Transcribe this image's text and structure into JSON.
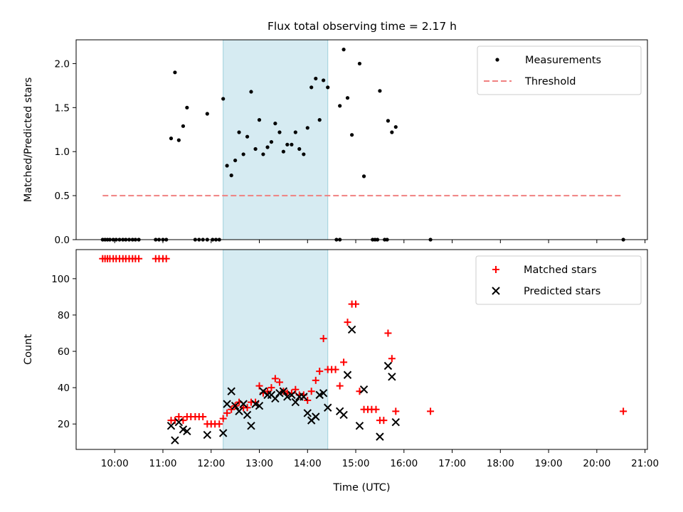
{
  "figure_title": "Flux total observing time = 2.17 h",
  "chart_data": [
    {
      "type": "scatter",
      "name": "ratio-panel",
      "title": "Flux total observing time = 2.17 h",
      "xlabel": "",
      "ylabel": "Matched/Predicted stars",
      "x_unit": "hours UTC",
      "xlim": [
        9.2,
        21.05
      ],
      "ylim": [
        0.0,
        2.27
      ],
      "yticks": [
        0.0,
        0.5,
        1.0,
        1.5,
        2.0
      ],
      "ytick_labels": [
        "0.0",
        "0.5",
        "1.0",
        "1.5",
        "2.0"
      ],
      "shaded_interval": [
        12.25,
        14.42
      ],
      "legend_position": "upper right",
      "series": [
        {
          "name": "Measurements",
          "color": "#000000",
          "marker": "dot",
          "points": [
            [
              9.75,
              0
            ],
            [
              9.8,
              0
            ],
            [
              9.85,
              0
            ],
            [
              9.9,
              0
            ],
            [
              9.97,
              0
            ],
            [
              10.03,
              0
            ],
            [
              10.1,
              0
            ],
            [
              10.17,
              0
            ],
            [
              10.23,
              0
            ],
            [
              10.3,
              0
            ],
            [
              10.37,
              0
            ],
            [
              10.43,
              0
            ],
            [
              10.5,
              0
            ],
            [
              10.85,
              0
            ],
            [
              10.92,
              0
            ],
            [
              11.0,
              0
            ],
            [
              11.07,
              0
            ],
            [
              11.67,
              0
            ],
            [
              11.75,
              0
            ],
            [
              11.83,
              0
            ],
            [
              11.92,
              0
            ],
            [
              12.03,
              0
            ],
            [
              12.1,
              0
            ],
            [
              12.17,
              0
            ],
            [
              14.6,
              0
            ],
            [
              14.67,
              0
            ],
            [
              15.35,
              0
            ],
            [
              15.4,
              0
            ],
            [
              15.45,
              0
            ],
            [
              15.6,
              0
            ],
            [
              15.65,
              0
            ],
            [
              16.55,
              0
            ],
            [
              20.55,
              0
            ],
            [
              11.17,
              1.15
            ],
            [
              11.25,
              1.9
            ],
            [
              11.33,
              1.13
            ],
            [
              11.42,
              1.29
            ],
            [
              11.5,
              1.5
            ],
            [
              11.92,
              1.43
            ],
            [
              12.25,
              1.6
            ],
            [
              12.33,
              0.84
            ],
            [
              12.42,
              0.73
            ],
            [
              12.5,
              0.9
            ],
            [
              12.58,
              1.22
            ],
            [
              12.67,
              0.97
            ],
            [
              12.75,
              1.17
            ],
            [
              12.83,
              1.68
            ],
            [
              12.92,
              1.03
            ],
            [
              13.0,
              1.36
            ],
            [
              13.08,
              0.97
            ],
            [
              13.17,
              1.05
            ],
            [
              13.25,
              1.11
            ],
            [
              13.33,
              1.32
            ],
            [
              13.42,
              1.22
            ],
            [
              13.5,
              1.0
            ],
            [
              13.58,
              1.08
            ],
            [
              13.67,
              1.08
            ],
            [
              13.75,
              1.22
            ],
            [
              13.83,
              1.03
            ],
            [
              13.92,
              0.97
            ],
            [
              14.0,
              1.27
            ],
            [
              14.08,
              1.73
            ],
            [
              14.17,
              1.83
            ],
            [
              14.25,
              1.36
            ],
            [
              14.33,
              1.81
            ],
            [
              14.42,
              1.73
            ],
            [
              14.67,
              1.52
            ],
            [
              14.75,
              2.16
            ],
            [
              14.83,
              1.61
            ],
            [
              14.92,
              1.19
            ],
            [
              15.08,
              2.0
            ],
            [
              15.17,
              0.72
            ],
            [
              15.5,
              1.69
            ],
            [
              15.67,
              1.35
            ],
            [
              15.75,
              1.22
            ],
            [
              15.83,
              1.28
            ]
          ]
        },
        {
          "name": "Threshold",
          "color": "#f08080",
          "style": "dashed",
          "x": [
            9.75,
            20.55
          ],
          "y": [
            0.5,
            0.5
          ]
        }
      ]
    },
    {
      "type": "scatter",
      "name": "count-panel",
      "title": "",
      "xlabel": "Time (UTC)",
      "ylabel": "Count",
      "x_unit": "hours UTC",
      "xlim": [
        9.2,
        21.05
      ],
      "ylim": [
        6,
        116
      ],
      "xticks": [
        10,
        11,
        12,
        13,
        14,
        15,
        16,
        17,
        18,
        19,
        20,
        21
      ],
      "xtick_labels": [
        "10:00",
        "11:00",
        "12:00",
        "13:00",
        "14:00",
        "15:00",
        "16:00",
        "17:00",
        "18:00",
        "19:00",
        "20:00",
        "21:00"
      ],
      "yticks": [
        20,
        40,
        60,
        80,
        100
      ],
      "ytick_labels": [
        "20",
        "40",
        "60",
        "80",
        "100"
      ],
      "shaded_interval": [
        12.25,
        14.42
      ],
      "legend_position": "upper right",
      "series": [
        {
          "name": "Matched stars",
          "color": "#ff0000",
          "marker": "plus",
          "points": [
            [
              9.75,
              111
            ],
            [
              9.8,
              111
            ],
            [
              9.85,
              111
            ],
            [
              9.9,
              111
            ],
            [
              9.97,
              111
            ],
            [
              10.03,
              111
            ],
            [
              10.1,
              111
            ],
            [
              10.17,
              111
            ],
            [
              10.23,
              111
            ],
            [
              10.3,
              111
            ],
            [
              10.37,
              111
            ],
            [
              10.43,
              111
            ],
            [
              10.5,
              111
            ],
            [
              10.85,
              111
            ],
            [
              10.92,
              111
            ],
            [
              11.0,
              111
            ],
            [
              11.07,
              111
            ],
            [
              11.17,
              22
            ],
            [
              11.25,
              22
            ],
            [
              11.33,
              24
            ],
            [
              11.42,
              22
            ],
            [
              11.5,
              24
            ],
            [
              11.58,
              24
            ],
            [
              11.67,
              24
            ],
            [
              11.75,
              24
            ],
            [
              11.83,
              24
            ],
            [
              11.92,
              20
            ],
            [
              12.0,
              20
            ],
            [
              12.08,
              20
            ],
            [
              12.17,
              20
            ],
            [
              12.25,
              23
            ],
            [
              12.33,
              26
            ],
            [
              12.42,
              28
            ],
            [
              12.5,
              30
            ],
            [
              12.58,
              32
            ],
            [
              12.67,
              29
            ],
            [
              12.75,
              29
            ],
            [
              12.83,
              32
            ],
            [
              12.92,
              32
            ],
            [
              13.0,
              41
            ],
            [
              13.08,
              37
            ],
            [
              13.17,
              38
            ],
            [
              13.25,
              40
            ],
            [
              13.33,
              45
            ],
            [
              13.42,
              43
            ],
            [
              13.5,
              38
            ],
            [
              13.58,
              37
            ],
            [
              13.67,
              37
            ],
            [
              13.75,
              39
            ],
            [
              13.83,
              36
            ],
            [
              13.92,
              36
            ],
            [
              14.0,
              33
            ],
            [
              14.08,
              38
            ],
            [
              14.17,
              44
            ],
            [
              14.25,
              49
            ],
            [
              14.33,
              67
            ],
            [
              14.42,
              50
            ],
            [
              14.5,
              50
            ],
            [
              14.58,
              50
            ],
            [
              14.67,
              41
            ],
            [
              14.75,
              54
            ],
            [
              14.83,
              76
            ],
            [
              14.92,
              86
            ],
            [
              15.0,
              86
            ],
            [
              15.08,
              38
            ],
            [
              15.17,
              28
            ],
            [
              15.25,
              28
            ],
            [
              15.33,
              28
            ],
            [
              15.42,
              28
            ],
            [
              15.5,
              22
            ],
            [
              15.58,
              22
            ],
            [
              15.67,
              70
            ],
            [
              15.75,
              56
            ],
            [
              15.83,
              27
            ],
            [
              16.55,
              27
            ],
            [
              20.55,
              27
            ]
          ]
        },
        {
          "name": "Predicted stars",
          "color": "#000000",
          "marker": "x",
          "points": [
            [
              11.17,
              19
            ],
            [
              11.25,
              11
            ],
            [
              11.33,
              21
            ],
            [
              11.42,
              17
            ],
            [
              11.5,
              16
            ],
            [
              11.92,
              14
            ],
            [
              12.25,
              15
            ],
            [
              12.33,
              31
            ],
            [
              12.42,
              38
            ],
            [
              12.5,
              30
            ],
            [
              12.58,
              27
            ],
            [
              12.67,
              31
            ],
            [
              12.75,
              25
            ],
            [
              12.83,
              19
            ],
            [
              12.92,
              31
            ],
            [
              13.0,
              30
            ],
            [
              13.08,
              38
            ],
            [
              13.17,
              36
            ],
            [
              13.25,
              36
            ],
            [
              13.33,
              34
            ],
            [
              13.42,
              37
            ],
            [
              13.5,
              38
            ],
            [
              13.58,
              35
            ],
            [
              13.67,
              36
            ],
            [
              13.75,
              32
            ],
            [
              13.83,
              35
            ],
            [
              13.92,
              35
            ],
            [
              14.0,
              26
            ],
            [
              14.08,
              22
            ],
            [
              14.17,
              24
            ],
            [
              14.25,
              36
            ],
            [
              14.33,
              37
            ],
            [
              14.42,
              29
            ],
            [
              14.67,
              27
            ],
            [
              14.75,
              25
            ],
            [
              14.83,
              47
            ],
            [
              14.92,
              72
            ],
            [
              15.08,
              19
            ],
            [
              15.17,
              39
            ],
            [
              15.5,
              13
            ],
            [
              15.67,
              52
            ],
            [
              15.75,
              46
            ],
            [
              15.83,
              21
            ]
          ]
        }
      ]
    }
  ]
}
